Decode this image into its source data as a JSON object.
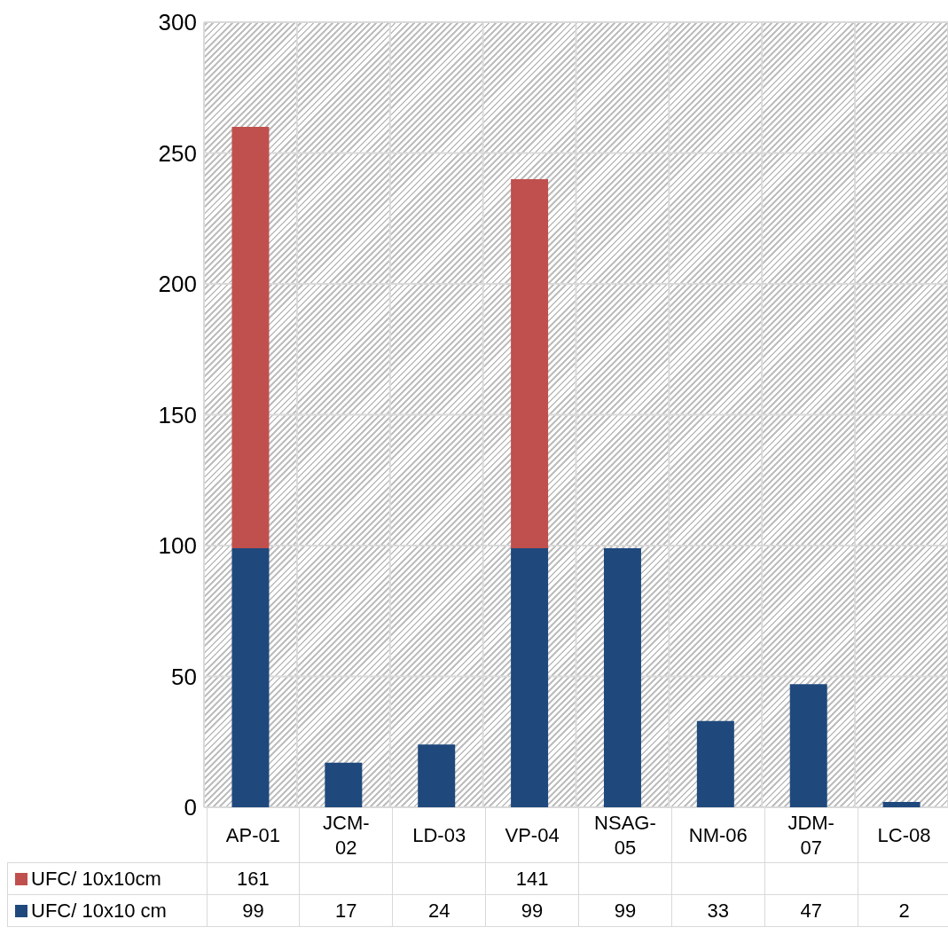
{
  "chart_data": {
    "type": "bar",
    "stacked": true,
    "categories": [
      "AP-01",
      "JCM-02",
      "LD-03",
      "VP-04",
      "NSAG-05",
      "NM-06",
      "JDM-07",
      "LC-08"
    ],
    "series": [
      {
        "name": "UFC/ 10x10 cm",
        "color": "#1f497d",
        "values": [
          99,
          17,
          24,
          99,
          99,
          33,
          47,
          2
        ]
      },
      {
        "name": "UFC/ 10x10cm",
        "color": "#c0504d",
        "values": [
          161,
          null,
          null,
          141,
          null,
          null,
          null,
          null
        ]
      }
    ],
    "ylim": [
      0,
      300
    ],
    "yticks": [
      0,
      50,
      100,
      150,
      200,
      250,
      300
    ],
    "grid": true,
    "data_labels": true,
    "legend": "bottom"
  }
}
